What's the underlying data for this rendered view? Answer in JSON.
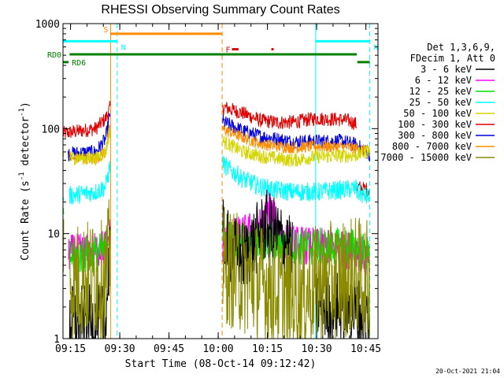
{
  "chart_data": {
    "type": "line",
    "title": "RHESSI Observing Summary Count Rates",
    "xlabel": "Start Time (08-Oct-14 09:12:42)",
    "ylabel_parts": [
      "Count Rate (s",
      "-1",
      " detector",
      "-1",
      ")"
    ],
    "yscale": "log",
    "xlim_minutes": [
      0,
      96
    ],
    "ylim": [
      1,
      1000
    ],
    "x_ticks": [
      {
        "label": "09:15",
        "minute": 2.3
      },
      {
        "label": "09:30",
        "minute": 17.3
      },
      {
        "label": "09:45",
        "minute": 32.3
      },
      {
        "label": "10:00",
        "minute": 47.3
      },
      {
        "label": "10:15",
        "minute": 62.3
      },
      {
        "label": "10:30",
        "minute": 77.3
      },
      {
        "label": "10:45",
        "minute": 92.3
      }
    ],
    "y_ticks": [
      {
        "label": "1",
        "value": 1
      },
      {
        "label": "10",
        "value": 10
      },
      {
        "label": "100",
        "value": 100
      },
      {
        "label": "1000",
        "value": 1000
      }
    ],
    "legend": {
      "header": [
        "Det 1,3,6,9,",
        "FDecim 1, Att 0"
      ],
      "entries": [
        {
          "label": "3 - 6 keV",
          "color": "#000000"
        },
        {
          "label": "6 - 12 keV",
          "color": "#ff00ff"
        },
        {
          "label": "12 - 25 keV",
          "color": "#00e000"
        },
        {
          "label": "25 - 50 keV",
          "color": "#00ffff"
        },
        {
          "label": "50 - 100 keV",
          "color": "#d4d400"
        },
        {
          "label": "100 - 300 keV",
          "color": "#e00000"
        },
        {
          "label": "300 - 800 keV",
          "color": "#0000e0"
        },
        {
          "label": "800 - 7000 keV",
          "color": "#ff8c00"
        },
        {
          "label": "7000 - 15000 keV",
          "color": "#8b8b00"
        }
      ]
    },
    "flags": [
      {
        "label": "S",
        "color": "#ff8c00",
        "start_min": 14.5,
        "end_min": 48.5,
        "level_count": 800
      },
      {
        "label": "N",
        "color": "#00ffff",
        "start_min": 0,
        "end_min": 16.5,
        "level_count": 680
      },
      {
        "label": "N",
        "color": "#00ffff",
        "start_min": 77,
        "end_min": 93.5,
        "level_count": 680
      },
      {
        "label": "F",
        "color": "#e00000",
        "start_min": 51.5,
        "end_min": 53.5,
        "level_count": 570
      },
      {
        "label": "",
        "color": "#e00000",
        "start_min": 63.5,
        "end_min": 64.2,
        "level_count": 570
      },
      {
        "label": "RD0",
        "color": "#008000",
        "start_min": 2,
        "end_min": 89.5,
        "level_count": 510
      },
      {
        "label": "RD6",
        "color": "#008000",
        "start_min": 0,
        "end_min": 1.7,
        "level_count": 430
      },
      {
        "label": "",
        "color": "#008000",
        "start_min": 89.7,
        "end_min": 93.5,
        "level_count": 430
      }
    ],
    "vertical_markers": [
      {
        "minute": 14.5,
        "color": "#ff8c00",
        "style": "solid"
      },
      {
        "minute": 16.5,
        "color": "#00ffff",
        "style": "dashed"
      },
      {
        "minute": 48.5,
        "color": "#ff8c00",
        "style": "dashed"
      },
      {
        "minute": 77,
        "color": "#00ffff",
        "style": "solid"
      },
      {
        "minute": 93.5,
        "color": "#00ffff",
        "style": "dashed"
      }
    ],
    "series": [
      {
        "name": "100 - 300 keV",
        "color": "#e00000",
        "noise": 0.03,
        "segments": [
          {
            "x": [
              0,
              0.1,
              2,
              10,
              13,
              14.4
            ],
            "y": [
              85,
              90,
              92,
              100,
              125,
              160
            ]
          },
          {
            "x": [
              48.7,
              49,
              55,
              60,
              65,
              70,
              77,
              85,
              87.5,
              89.4
            ],
            "y": [
              150,
              160,
              140,
              120,
              115,
              115,
              125,
              122,
              118,
              110
            ]
          },
          {
            "x": [
              89.5,
              91,
              93.5
            ],
            "y": [
              28,
              27,
              26
            ]
          }
        ]
      },
      {
        "name": "300 - 800 keV",
        "color": "#0000e0",
        "noise": 0.03,
        "segments": [
          {
            "x": [
              1.5,
              2,
              10,
              13,
              14.4
            ],
            "y": [
              56,
              58,
              60,
              80,
              140
            ]
          },
          {
            "x": [
              48.7,
              49,
              55,
              60,
              65,
              70,
              77,
              85,
              89.5,
              93.5
            ],
            "y": [
              120,
              115,
              95,
              85,
              80,
              75,
              76,
              76,
              70,
              57
            ]
          }
        ]
      },
      {
        "name": "800 - 7000 keV",
        "color": "#ff8c00",
        "noise": 0.025,
        "segments": [
          {
            "x": [
              2,
              3,
              10,
              13,
              14.4
            ],
            "y": [
              55,
              52,
              52,
              60,
              110
            ]
          },
          {
            "x": [
              48.7,
              49,
              55,
              60,
              65,
              70,
              77,
              85,
              89.5,
              93.5
            ],
            "y": [
              100,
              98,
              82,
              72,
              68,
              66,
              68,
              67,
              65,
              60
            ]
          }
        ]
      },
      {
        "name": "50 - 100 keV",
        "color": "#d4d400",
        "noise": 0.03,
        "segments": [
          {
            "x": [
              0.1,
              0.3
            ],
            "y": [
              55,
              57
            ]
          },
          {
            "x": [
              2,
              10,
              13,
              14.4
            ],
            "y": [
              53,
              52,
              60,
              100
            ]
          },
          {
            "x": [
              48.7,
              49,
              55,
              60,
              65,
              70,
              77,
              85,
              89.5,
              92,
              93.5
            ],
            "y": [
              80,
              75,
              60,
              55,
              52,
              50,
              54,
              55,
              56,
              60,
              62
            ]
          }
        ]
      },
      {
        "name": "25 - 50 keV",
        "color": "#00ffff",
        "noise": 0.04,
        "segments": [
          {
            "x": [
              0.1,
              0.3
            ],
            "y": [
              22,
              24
            ]
          },
          {
            "x": [
              2,
              10,
              13,
              14.4
            ],
            "y": [
              23,
              25,
              28,
              45
            ]
          },
          {
            "x": [
              48.7,
              49,
              55,
              60,
              65,
              70,
              77,
              85,
              89.5
            ],
            "y": [
              48,
              45,
              33,
              28,
              26,
              25,
              25,
              26,
              27
            ]
          },
          {
            "x": [
              89.5,
              93.5
            ],
            "y": [
              25,
              22
            ]
          }
        ]
      },
      {
        "name": "6 - 12 keV",
        "color": "#ff00ff",
        "noise": 0.08,
        "segments": [
          {
            "x": [
              1.7,
              2,
              10,
              13,
              14.4
            ],
            "y": [
              7,
              6.5,
              6.8,
              7.5,
              10
            ]
          },
          {
            "x": [
              48.7,
              50,
              55,
              58,
              61,
              63,
              65,
              67,
              70,
              77,
              85,
              89.5,
              92,
              93.5
            ],
            "y": [
              8,
              9,
              10,
              11,
              12,
              18,
              12,
              9,
              8,
              7.5,
              7,
              7,
              6,
              5
            ]
          }
        ]
      },
      {
        "name": "12 - 25 keV",
        "color": "#00e000",
        "noise": 0.08,
        "segments": [
          {
            "x": [
              0.1,
              0.3
            ],
            "y": [
              12,
              13
            ]
          },
          {
            "x": [
              2,
              10,
              13,
              14.4
            ],
            "y": [
              6,
              6.5,
              7,
              12
            ]
          },
          {
            "x": [
              48.7,
              49,
              55,
              60,
              65,
              70,
              77,
              85,
              89.5,
              93.5
            ],
            "y": [
              10,
              9,
              8.5,
              8,
              8,
              7.5,
              7.5,
              7.5,
              7.5,
              6
            ]
          }
        ]
      },
      {
        "name": "3 - 6 keV",
        "color": "#000000",
        "noise": 0.15,
        "segments": [
          {
            "x": [
              2,
              10,
              13,
              14.4
            ],
            "y": [
              1.5,
              1.5,
              1.5,
              8
            ]
          },
          {
            "x": [
              48.7,
              49,
              51,
              55,
              58,
              60,
              62,
              65,
              68,
              70
            ],
            "y": [
              10,
              9,
              7,
              6,
              8,
              10,
              12,
              10,
              8,
              6
            ]
          },
          {
            "x": [
              77,
              80,
              85,
              89.5,
              93.5
            ],
            "y": [
              2,
              2,
              2,
              1.8,
              1.5
            ]
          }
        ]
      },
      {
        "name": "7000 - 15000 keV",
        "color": "#8b8b00",
        "noise": 0.25,
        "segments": [
          {
            "x": [
              0.1,
              0.3
            ],
            "y": [
              6,
              6.2
            ]
          },
          {
            "x": [
              2,
              10,
              13,
              14.4
            ],
            "y": [
              3.5,
              3.8,
              3.5,
              7
            ]
          },
          {
            "x": [
              48.7,
              49,
              55,
              60,
              65,
              70,
              77,
              85,
              89.5,
              93.5
            ],
            "y": [
              5.5,
              5,
              4,
              3.5,
              2.8,
              2.5,
              3.2,
              3.8,
              4,
              3.5
            ]
          }
        ]
      }
    ]
  },
  "footer": {
    "date": "20-Oct-2021 21:04"
  }
}
